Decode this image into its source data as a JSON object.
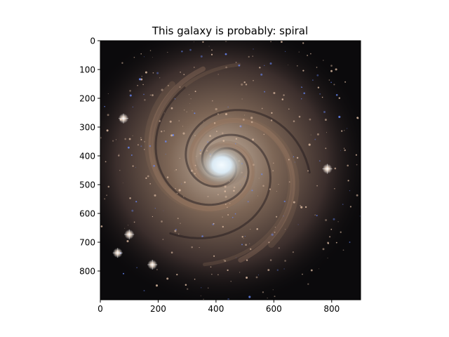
{
  "figure": {
    "title": "This galaxy is probably: spiral"
  },
  "chart_data": {
    "type": "image",
    "title": "This galaxy is probably: spiral",
    "image_description_content": "spiral galaxy",
    "xlim": [
      0,
      900
    ],
    "ylim": [
      900,
      0
    ],
    "y_axis_inverted": true,
    "xticks": [
      0,
      200,
      400,
      600,
      800
    ],
    "yticks": [
      0,
      100,
      200,
      300,
      400,
      500,
      600,
      700,
      800
    ],
    "xtick_labels": [
      "0",
      "200",
      "400",
      "600",
      "800"
    ],
    "ytick_labels": [
      "0",
      "100",
      "200",
      "300",
      "400",
      "500",
      "600",
      "700",
      "800"
    ],
    "grid": false,
    "galaxy_core_center": [
      420,
      430
    ],
    "bright_stars": [
      [
        80,
        270
      ],
      [
        100,
        673
      ],
      [
        180,
        778
      ],
      [
        60,
        737
      ],
      [
        785,
        445
      ]
    ],
    "colors": {
      "background": "#ffffff",
      "space": "#0b0a0c",
      "arm_dust": "#8a6a55",
      "core": "#e8f4ff",
      "blue_stars": "#6a8cff"
    }
  }
}
